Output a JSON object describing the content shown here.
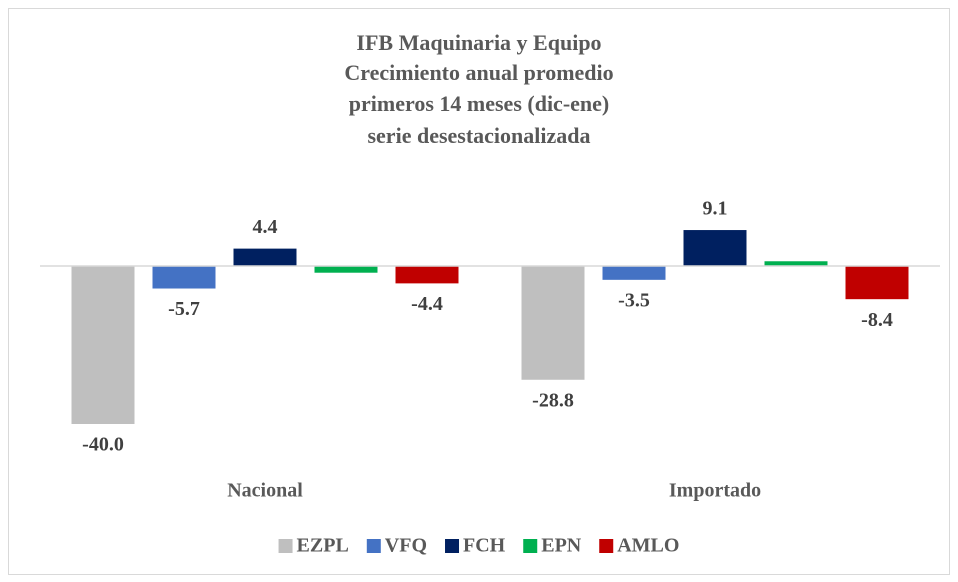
{
  "chart_data": {
    "type": "bar",
    "title": [
      "IFB Maquinaria y Equipo",
      "Crecimiento anual promedio",
      "primeros 14 meses (dic-ene)",
      "serie desestacionalizada"
    ],
    "categories": [
      "Nacional",
      "Importado"
    ],
    "series": [
      {
        "name": "EZPL",
        "color": "#bfbfbf",
        "values": [
          -40,
          -28.8
        ],
        "value_labels": [
          "-40.0",
          "-28.8"
        ]
      },
      {
        "name": "VFQ",
        "color": "#4472c4",
        "values": [
          -5.7,
          -3.5
        ],
        "value_labels": [
          "-5.7",
          "-3.5"
        ]
      },
      {
        "name": "FCH",
        "color": "#002060",
        "values": [
          4.4,
          9.1
        ],
        "value_labels": [
          "4.4",
          "9.1"
        ]
      },
      {
        "name": "EPN",
        "color": "#00b050",
        "values": [
          -1.7,
          1.2
        ],
        "value_labels": [
          null,
          null
        ]
      },
      {
        "name": "AMLO",
        "color": "#c00000",
        "values": [
          -4.4,
          -8.4
        ],
        "value_labels": [
          "-4.4",
          "-8.4"
        ]
      }
    ],
    "legend": "bottom"
  }
}
